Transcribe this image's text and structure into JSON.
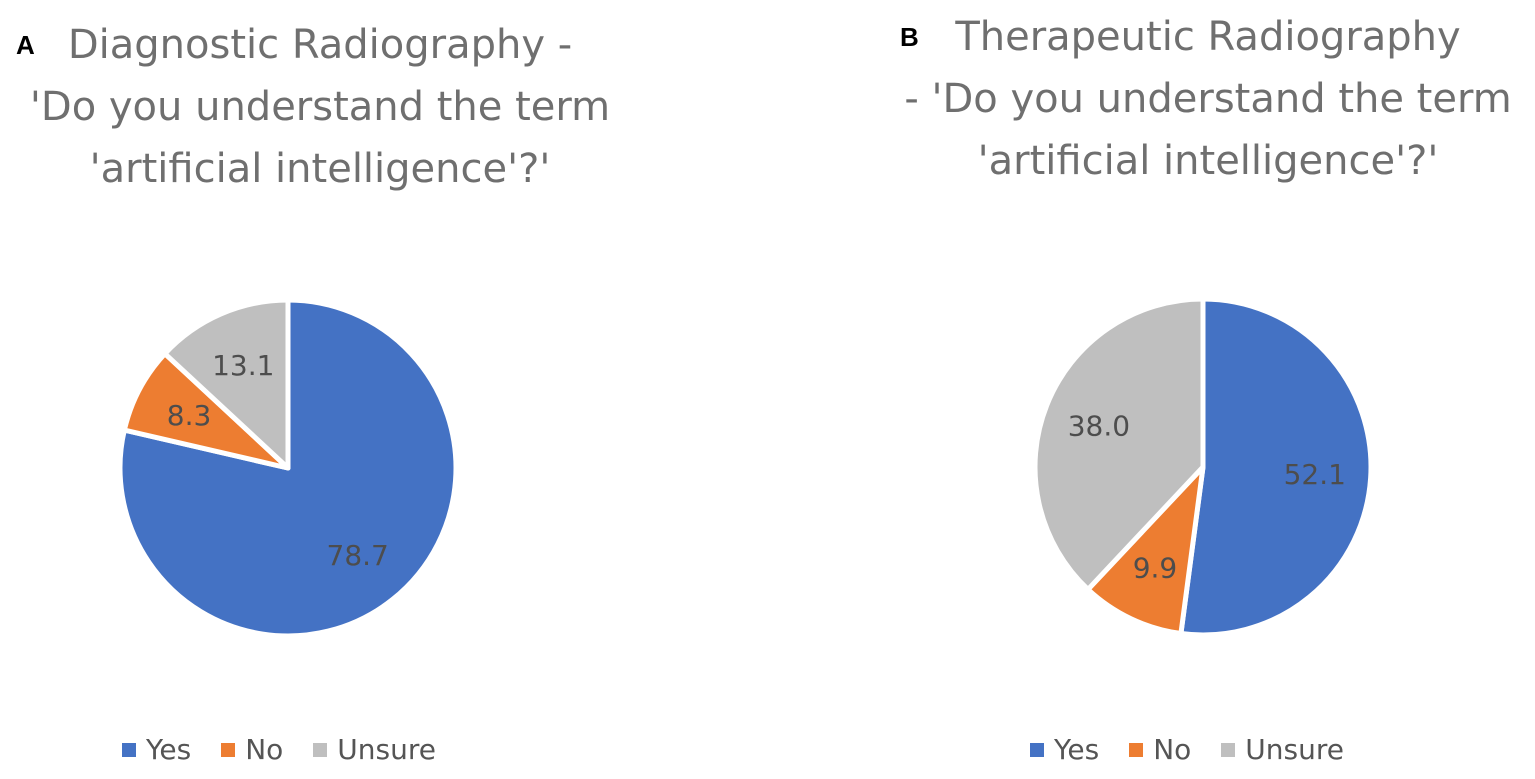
{
  "chart_data": [
    {
      "type": "pie",
      "panel_letter": "A",
      "title_lines": [
        "Diagnostic Radiography -",
        "'Do you understand the term",
        "'artificial intelligence'?'"
      ],
      "categories": [
        "Yes",
        "No",
        "Unsure"
      ],
      "values": [
        78.7,
        8.3,
        13.1
      ],
      "data_labels": [
        "78.7",
        "8.3",
        "13.1"
      ],
      "colors": [
        "#4472C4",
        "#ED7D31",
        "#BFBFBF"
      ],
      "start_angle_deg": 0,
      "direction": "clockwise",
      "legend_position": "bottom"
    },
    {
      "type": "pie",
      "panel_letter": "B",
      "title_lines": [
        "Therapeutic Radiography",
        "- 'Do you understand the term",
        "'artificial intelligence'?'"
      ],
      "categories": [
        "Yes",
        "No",
        "Unsure"
      ],
      "values": [
        52.1,
        9.9,
        38.0
      ],
      "data_labels": [
        "52.1",
        "9.9",
        "38.0"
      ],
      "colors": [
        "#4472C4",
        "#ED7D31",
        "#BFBFBF"
      ],
      "start_angle_deg": 0,
      "direction": "clockwise",
      "legend_position": "bottom"
    }
  ]
}
